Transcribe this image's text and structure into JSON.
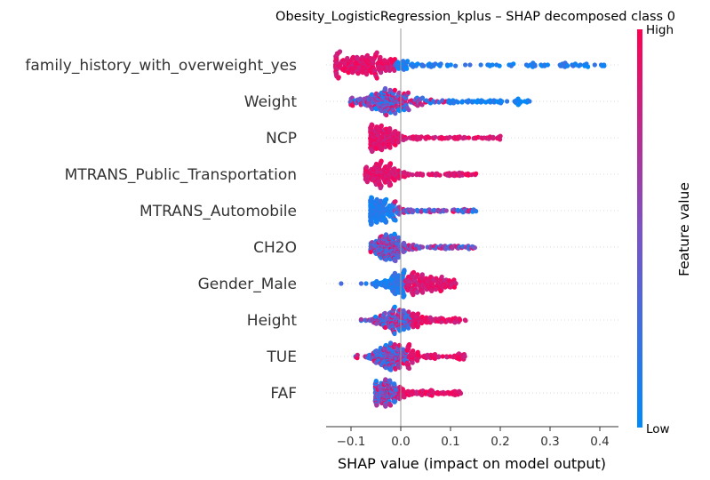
{
  "chart_data": {
    "type": "scatter",
    "subtype": "shap-beeswarm",
    "title": "Obesity_LogisticRegression_kplus – SHAP decomposed class 0",
    "xlabel": "SHAP value (impact on model output)",
    "xlim": [
      -0.15,
      0.43
    ],
    "x_ticks": [
      -0.1,
      0.0,
      0.1,
      0.2,
      0.3,
      0.4
    ],
    "x_tick_labels": [
      "−0.1",
      "0.0",
      "0.1",
      "0.2",
      "0.3",
      "0.4"
    ],
    "colorbar": {
      "label": "Feature value",
      "high_label": "High",
      "low_label": "Low",
      "low_color": "#008bfb",
      "mid_color": "#7c52c6",
      "high_color": "#ff0052"
    },
    "zero_line": true,
    "features": [
      {
        "name": "family_history_with_overweight_yes",
        "x_min": -0.13,
        "x_max": 0.41,
        "peak": -0.07,
        "spread": 0.045,
        "tail": 0.3,
        "dense_color": "high",
        "tail_color": "low"
      },
      {
        "name": "Weight",
        "x_min": -0.1,
        "x_max": 0.26,
        "peak": -0.03,
        "spread": 0.035,
        "tail": 0.16,
        "dense_color": "mixed",
        "tail_color": "low"
      },
      {
        "name": "NCP",
        "x_min": -0.06,
        "x_max": 0.2,
        "peak": -0.04,
        "spread": 0.02,
        "tail": 0.09,
        "dense_color": "high",
        "tail_color": "high"
      },
      {
        "name": "MTRANS_Public_Transportation",
        "x_min": -0.07,
        "x_max": 0.15,
        "peak": -0.04,
        "spread": 0.02,
        "tail": 0.08,
        "dense_color": "high",
        "tail_color": "high"
      },
      {
        "name": "MTRANS_Automobile",
        "x_min": -0.06,
        "x_max": 0.15,
        "peak": -0.04,
        "spread": 0.02,
        "tail": 0.08,
        "dense_color": "low",
        "tail_color": "mixed"
      },
      {
        "name": "CH2O",
        "x_min": -0.06,
        "x_max": 0.15,
        "peak": -0.03,
        "spread": 0.02,
        "tail": 0.07,
        "dense_color": "mixed",
        "tail_color": "mixed"
      },
      {
        "name": "Gender_Male",
        "x_min": -0.12,
        "x_max": 0.11,
        "peak": 0.01,
        "spread": 0.03,
        "tail": 0.04,
        "dense_color": "split",
        "tail_color": "high"
      },
      {
        "name": "Height",
        "x_min": -0.08,
        "x_max": 0.13,
        "peak": -0.01,
        "spread": 0.025,
        "tail": 0.06,
        "dense_color": "mixed",
        "tail_color": "high"
      },
      {
        "name": "TUE",
        "x_min": -0.09,
        "x_max": 0.13,
        "peak": -0.02,
        "spread": 0.025,
        "tail": 0.06,
        "dense_color": "mixed",
        "tail_color": "high"
      },
      {
        "name": "FAF",
        "x_min": -0.05,
        "x_max": 0.12,
        "peak": -0.03,
        "spread": 0.02,
        "tail": 0.06,
        "dense_color": "mixed",
        "tail_color": "high"
      }
    ]
  }
}
